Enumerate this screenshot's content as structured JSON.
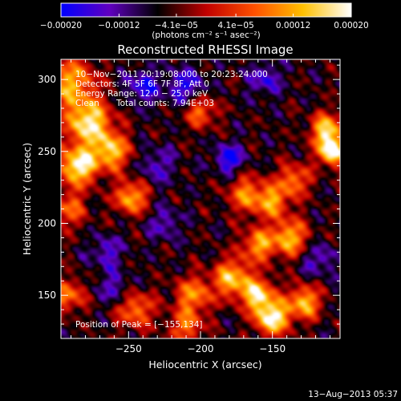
{
  "chart_data": {
    "type": "heatmap",
    "title": "Reconstructed RHESSI Image",
    "xlabel": "Heliocentric X (arcsec)",
    "ylabel": "Heliocentric Y (arcsec)",
    "xlim": [
      -297,
      -103
    ],
    "ylim": [
      120,
      314
    ],
    "x_ticks": [
      -250,
      -200,
      -150
    ],
    "x_tick_labels": [
      "−250",
      "−200",
      "−150"
    ],
    "y_ticks": [
      150,
      200,
      250,
      300
    ],
    "y_tick_labels": [
      "150",
      "200",
      "250",
      "300"
    ],
    "colorbar": {
      "range": [
        -0.0002,
        0.0002
      ],
      "ticks": [
        -0.0002,
        -0.00012,
        -4.1e-05,
        4.1e-05,
        0.00012,
        0.0002
      ],
      "tick_labels": [
        "−0.00020",
        "−0.00012",
        "−4.1e−05",
        "4.1e−05",
        "0.00012",
        "0.00020"
      ],
      "units_label": "(photons cm⁻² s⁻¹ asec⁻²)",
      "colormap_stops": [
        "#0000ff",
        "#6000c0",
        "#000000",
        "#c00000",
        "#ff5000",
        "#ffc000",
        "#ffffff"
      ]
    },
    "annotations": {
      "time_range": "10−Nov−2011 20:19:08.000 to 20:23:24.000",
      "detectors": "Detectors: 4F 5F 6F 7F 8F, Att 0",
      "energy_range": "Energy Range: 12.0 − 25.0 keV",
      "algorithm": "Clean",
      "total_counts": "Total counts: 7.94E+03",
      "peak_position": "Position of Peak = [−155,134]"
    },
    "peak": {
      "x": -155,
      "y": 134
    },
    "bright_sources": [
      {
        "x": -290,
        "y": 298,
        "intensity": 0.00012,
        "sigma": 12
      },
      {
        "x": -278,
        "y": 270,
        "intensity": 0.00018,
        "sigma": 11
      },
      {
        "x": -285,
        "y": 240,
        "intensity": 0.0002,
        "sigma": 9
      },
      {
        "x": -262,
        "y": 250,
        "intensity": 0.00014,
        "sigma": 9
      },
      {
        "x": -112,
        "y": 265,
        "intensity": 0.00015,
        "sigma": 8
      },
      {
        "x": -108,
        "y": 250,
        "intensity": 0.0002,
        "sigma": 7
      },
      {
        "x": -168,
        "y": 220,
        "intensity": 9e-05,
        "sigma": 9
      },
      {
        "x": -150,
        "y": 215,
        "intensity": 0.0001,
        "sigma": 8
      },
      {
        "x": -138,
        "y": 190,
        "intensity": 0.00013,
        "sigma": 9
      },
      {
        "x": -160,
        "y": 185,
        "intensity": 0.00011,
        "sigma": 8
      },
      {
        "x": -248,
        "y": 218,
        "intensity": 0.00013,
        "sigma": 8
      },
      {
        "x": -292,
        "y": 210,
        "intensity": 7e-05,
        "sigma": 9
      },
      {
        "x": -178,
        "y": 162,
        "intensity": 0.00014,
        "sigma": 9
      },
      {
        "x": -160,
        "y": 150,
        "intensity": 0.00016,
        "sigma": 8
      },
      {
        "x": -150,
        "y": 134,
        "intensity": 0.0002,
        "sigma": 8
      },
      {
        "x": -128,
        "y": 145,
        "intensity": 0.00014,
        "sigma": 8
      },
      {
        "x": -205,
        "y": 150,
        "intensity": 0.0001,
        "sigma": 9
      },
      {
        "x": -210,
        "y": 128,
        "intensity": 8e-05,
        "sigma": 8
      },
      {
        "x": -245,
        "y": 140,
        "intensity": 9e-05,
        "sigma": 9
      },
      {
        "x": -292,
        "y": 150,
        "intensity": 9e-05,
        "sigma": 8
      },
      {
        "x": -200,
        "y": 278,
        "intensity": 8e-05,
        "sigma": 8
      },
      {
        "x": -135,
        "y": 230,
        "intensity": 9e-05,
        "sigma": 8
      }
    ],
    "dim_sources": [
      {
        "x": -240,
        "y": 295,
        "intensity": -0.00012,
        "sigma": 8
      },
      {
        "x": -180,
        "y": 245,
        "intensity": -0.00014,
        "sigma": 7
      },
      {
        "x": -210,
        "y": 295,
        "intensity": -0.00012,
        "sigma": 9
      },
      {
        "x": -155,
        "y": 300,
        "intensity": -0.0001,
        "sigma": 8
      },
      {
        "x": -265,
        "y": 180,
        "intensity": -9e-05,
        "sigma": 8
      },
      {
        "x": -225,
        "y": 200,
        "intensity": -8e-05,
        "sigma": 8
      },
      {
        "x": -118,
        "y": 175,
        "intensity": -9e-05,
        "sigma": 8
      },
      {
        "x": -260,
        "y": 155,
        "intensity": -8e-05,
        "sigma": 8
      },
      {
        "x": -230,
        "y": 240,
        "intensity": -8e-05,
        "sigma": 9
      }
    ]
  },
  "footer": {
    "date": "13−Aug−2013 05:37"
  }
}
